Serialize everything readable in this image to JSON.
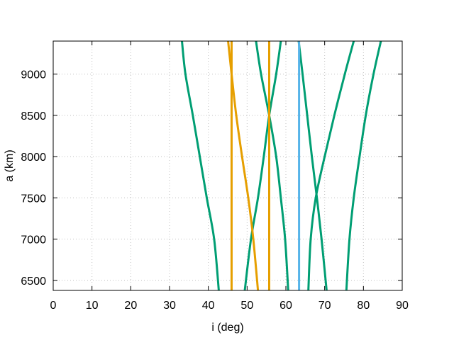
{
  "chart_data": {
    "type": "line",
    "title": "",
    "xlabel": "i (deg)",
    "ylabel": "a (km)",
    "xlim": [
      0,
      90
    ],
    "ylim": [
      6378,
      9400
    ],
    "xticks": [
      0,
      10,
      20,
      30,
      40,
      50,
      60,
      70,
      80,
      90
    ],
    "yticks": [
      6500,
      7000,
      7500,
      8000,
      8500,
      9000
    ],
    "grid": true,
    "legend": "none",
    "colors": {
      "green": "#009e73",
      "orange": "#e69f00",
      "blue": "#56b4e9"
    },
    "series": [
      {
        "color": "green",
        "points": [
          [
            42.7,
            6378
          ],
          [
            41.5,
            7000
          ],
          [
            39.6,
            7500
          ],
          [
            37.8,
            8000
          ],
          [
            36.0,
            8500
          ],
          [
            34.1,
            9000
          ],
          [
            33.2,
            9400
          ]
        ]
      },
      {
        "color": "green",
        "points": [
          [
            49.4,
            6378
          ],
          [
            51.0,
            7000
          ],
          [
            52.8,
            7500
          ],
          [
            54.3,
            8000
          ],
          [
            55.7,
            8500
          ],
          [
            57.5,
            9000
          ],
          [
            58.7,
            9400
          ]
        ]
      },
      {
        "color": "green",
        "points": [
          [
            60.6,
            6378
          ],
          [
            59.8,
            7000
          ],
          [
            58.7,
            7500
          ],
          [
            57.5,
            8000
          ],
          [
            55.7,
            8500
          ],
          [
            53.6,
            9000
          ],
          [
            52.3,
            9400
          ]
        ]
      },
      {
        "color": "green",
        "points": [
          [
            70.5,
            6378
          ],
          [
            69.2,
            7000
          ],
          [
            68.0,
            7500
          ],
          [
            66.7,
            8000
          ],
          [
            65.5,
            8500
          ],
          [
            64.3,
            9000
          ],
          [
            63.3,
            9400
          ]
        ]
      },
      {
        "color": "green",
        "points": [
          [
            65.8,
            6378
          ],
          [
            66.4,
            7000
          ],
          [
            67.7,
            7500
          ],
          [
            70.0,
            8000
          ],
          [
            72.5,
            8500
          ],
          [
            75.2,
            9000
          ],
          [
            77.5,
            9400
          ]
        ]
      },
      {
        "color": "green",
        "points": [
          [
            75.6,
            6378
          ],
          [
            76.4,
            7000
          ],
          [
            77.5,
            7500
          ],
          [
            79.0,
            8000
          ],
          [
            80.6,
            8500
          ],
          [
            82.6,
            9000
          ],
          [
            84.5,
            9400
          ]
        ]
      },
      {
        "color": "orange",
        "points": [
          [
            46.0,
            6378
          ],
          [
            46.0,
            9400
          ]
        ]
      },
      {
        "color": "orange",
        "points": [
          [
            55.7,
            6378
          ],
          [
            55.7,
            9400
          ]
        ]
      },
      {
        "color": "orange",
        "points": [
          [
            52.8,
            6378
          ],
          [
            51.6,
            7000
          ],
          [
            50.3,
            7500
          ],
          [
            48.7,
            8000
          ],
          [
            47.2,
            8500
          ],
          [
            46.0,
            9000
          ],
          [
            45.1,
            9400
          ]
        ]
      },
      {
        "color": "blue",
        "points": [
          [
            63.4,
            6378
          ],
          [
            63.4,
            9400
          ]
        ]
      }
    ]
  }
}
